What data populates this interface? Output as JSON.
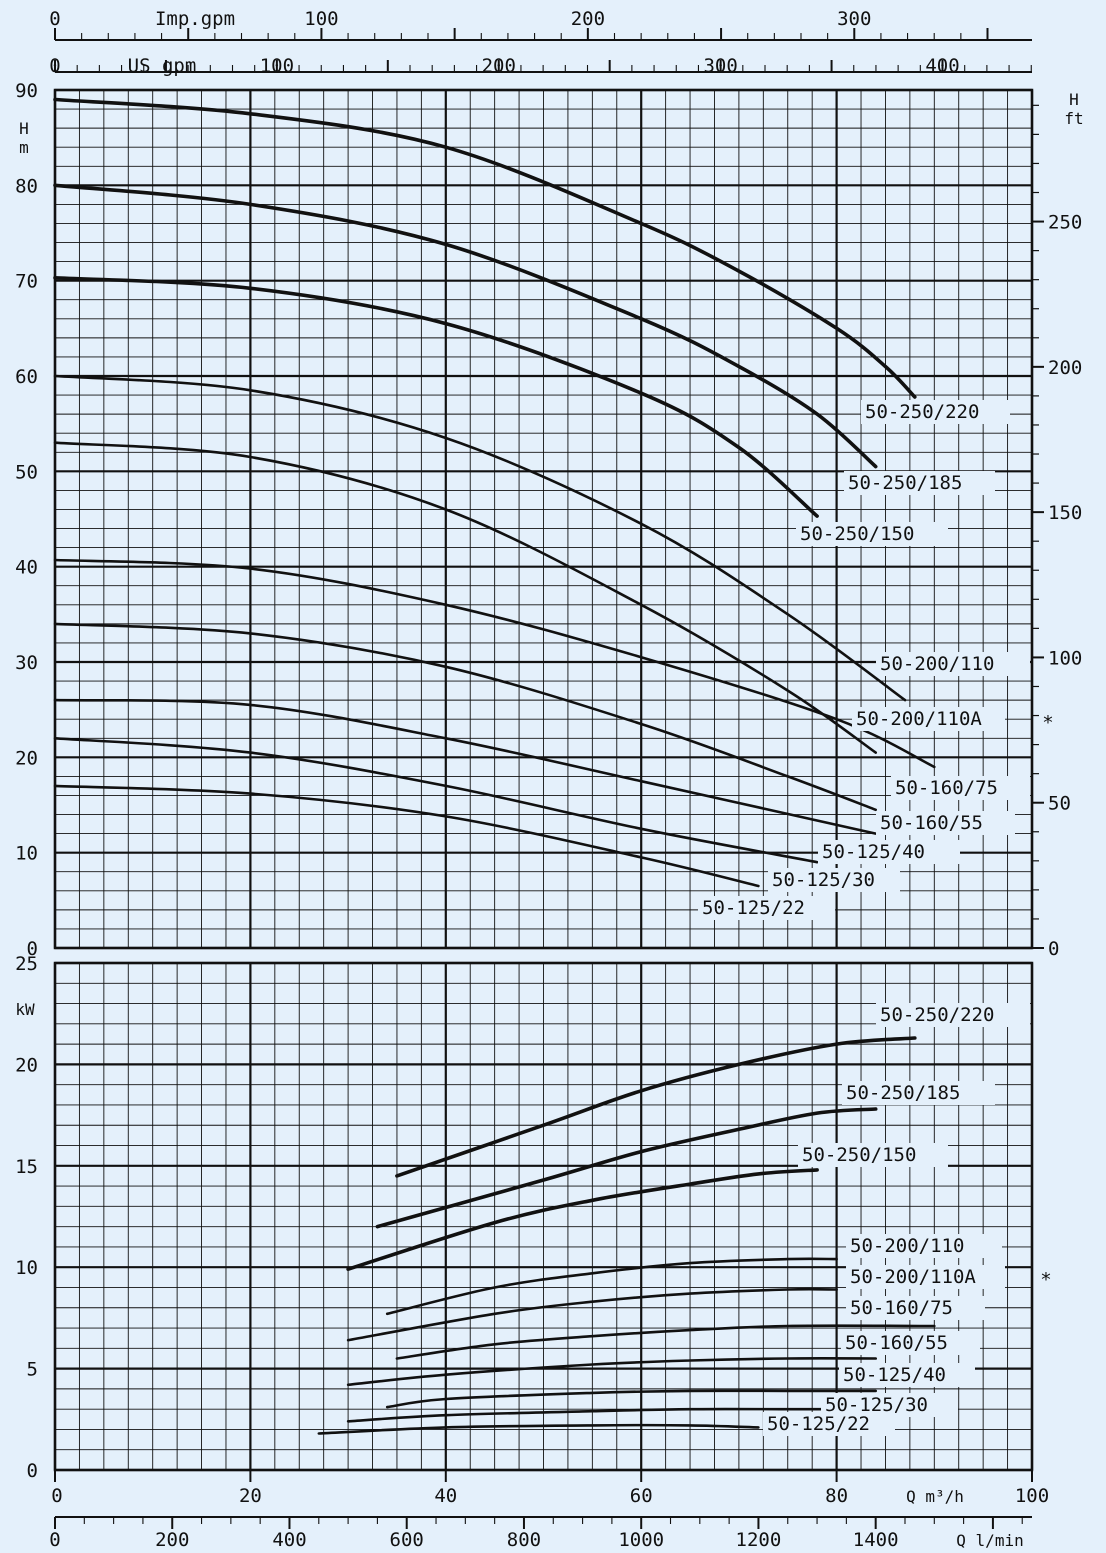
{
  "chart_data": [
    {
      "type": "line",
      "panel": "head",
      "xlabel": "Q m³/h",
      "ylabel_left": "H m",
      "ylabel_right": "H ft",
      "xlim": [
        0,
        100
      ],
      "ylim": [
        0,
        90
      ],
      "y_ticks": [
        0,
        10,
        20,
        30,
        40,
        50,
        60,
        70,
        80,
        90
      ],
      "right_axis_ticks": [
        0,
        50,
        100,
        150,
        200,
        250
      ],
      "top_axis_imp": {
        "label": "Imp.gpm",
        "ticks": [
          0,
          100,
          200,
          300
        ]
      },
      "top_axis_us": {
        "label": "US gpm",
        "ticks": [
          0,
          100,
          200,
          300,
          400
        ]
      },
      "grid": true,
      "marker_symbol": "*",
      "series": [
        {
          "name": "50-250/220",
          "points": [
            [
              0,
              89
            ],
            [
              20,
              87.5
            ],
            [
              40,
              84
            ],
            [
              60,
              76
            ],
            [
              70,
              71
            ],
            [
              80,
              65
            ],
            [
              85,
              61
            ],
            [
              88,
              57.8
            ]
          ]
        },
        {
          "name": "50-250/185",
          "points": [
            [
              0,
              80
            ],
            [
              20,
              78
            ],
            [
              40,
              73.8
            ],
            [
              60,
              66
            ],
            [
              70,
              61
            ],
            [
              78,
              56
            ],
            [
              84,
              50.5
            ]
          ]
        },
        {
          "name": "50-250/150",
          "points": [
            [
              0,
              70.3
            ],
            [
              20,
              69.2
            ],
            [
              40,
              65.5
            ],
            [
              60,
              58.2
            ],
            [
              70,
              52.5
            ],
            [
              78,
              45.3
            ]
          ]
        },
        {
          "name": "50-200/110",
          "points": [
            [
              0,
              60
            ],
            [
              20,
              58.5
            ],
            [
              40,
              53.5
            ],
            [
              60,
              44.5
            ],
            [
              75,
              35
            ],
            [
              87,
              26
            ]
          ]
        },
        {
          "name": "50-200/110A",
          "points": [
            [
              0,
              53
            ],
            [
              20,
              51.5
            ],
            [
              40,
              46
            ],
            [
              60,
              36
            ],
            [
              75,
              27
            ],
            [
              84,
              20.5
            ]
          ]
        },
        {
          "name": "50-160/75",
          "points": [
            [
              0,
              40.7
            ],
            [
              20,
              39.8
            ],
            [
              40,
              36
            ],
            [
              60,
              30.5
            ],
            [
              80,
              24
            ],
            [
              90,
              19
            ]
          ]
        },
        {
          "name": "50-160/55",
          "points": [
            [
              0,
              34
            ],
            [
              20,
              33
            ],
            [
              40,
              29.5
            ],
            [
              60,
              23.5
            ],
            [
              75,
              18
            ],
            [
              84,
              14.5
            ]
          ]
        },
        {
          "name": "50-125/40",
          "points": [
            [
              0,
              26
            ],
            [
              20,
              25.5
            ],
            [
              40,
              22
            ],
            [
              60,
              17.5
            ],
            [
              84,
              12
            ]
          ]
        },
        {
          "name": "50-125/30",
          "points": [
            [
              0,
              22
            ],
            [
              20,
              20.5
            ],
            [
              40,
              17
            ],
            [
              60,
              12.5
            ],
            [
              78,
              9
            ]
          ]
        },
        {
          "name": "50-125/22",
          "points": [
            [
              0,
              17
            ],
            [
              20,
              16.2
            ],
            [
              40,
              13.8
            ],
            [
              60,
              9.5
            ],
            [
              72,
              6.5
            ]
          ]
        }
      ]
    },
    {
      "type": "line",
      "panel": "power",
      "xlabel": "Q m³/h",
      "x2label": "Q l/min",
      "ylabel": "kW",
      "xlim": [
        0,
        100
      ],
      "ylim": [
        0,
        25
      ],
      "y_ticks": [
        0,
        5,
        10,
        15,
        20,
        25
      ],
      "x_ticks": [
        0,
        20,
        40,
        60,
        80,
        100
      ],
      "x2_ticks": [
        0,
        200,
        400,
        600,
        800,
        1000,
        1200,
        1400
      ],
      "grid": true,
      "marker_symbol": "*",
      "series": [
        {
          "name": "50-250/220",
          "points": [
            [
              35,
              14.5
            ],
            [
              50,
              17
            ],
            [
              60,
              18.7
            ],
            [
              70,
              20
            ],
            [
              80,
              21
            ],
            [
              88,
              21.3
            ]
          ]
        },
        {
          "name": "50-250/185",
          "points": [
            [
              33,
              12
            ],
            [
              50,
              14.3
            ],
            [
              60,
              15.7
            ],
            [
              70,
              16.8
            ],
            [
              78,
              17.6
            ],
            [
              84,
              17.8
            ]
          ]
        },
        {
          "name": "50-250/150",
          "points": [
            [
              30,
              9.9
            ],
            [
              45,
              12.2
            ],
            [
              55,
              13.3
            ],
            [
              65,
              14.1
            ],
            [
              72,
              14.6
            ],
            [
              78,
              14.8
            ]
          ]
        },
        {
          "name": "50-200/110",
          "points": [
            [
              34,
              7.7
            ],
            [
              45,
              9
            ],
            [
              55,
              9.7
            ],
            [
              65,
              10.2
            ],
            [
              75,
              10.4
            ],
            [
              80,
              10.4
            ]
          ]
        },
        {
          "name": "50-200/110A",
          "points": [
            [
              30,
              6.4
            ],
            [
              45,
              7.7
            ],
            [
              55,
              8.3
            ],
            [
              65,
              8.7
            ],
            [
              75,
              8.9
            ],
            [
              80,
              8.9
            ]
          ]
        },
        {
          "name": "50-160/75",
          "points": [
            [
              35,
              5.5
            ],
            [
              45,
              6.2
            ],
            [
              55,
              6.6
            ],
            [
              65,
              6.9
            ],
            [
              75,
              7.1
            ],
            [
              90,
              7.1
            ]
          ]
        },
        {
          "name": "50-160/55",
          "points": [
            [
              30,
              4.2
            ],
            [
              40,
              4.7
            ],
            [
              55,
              5.2
            ],
            [
              65,
              5.4
            ],
            [
              75,
              5.5
            ],
            [
              84,
              5.5
            ]
          ]
        },
        {
          "name": "50-125/40",
          "points": [
            [
              34,
              3.1
            ],
            [
              40,
              3.5
            ],
            [
              55,
              3.8
            ],
            [
              65,
              3.9
            ],
            [
              75,
              3.9
            ],
            [
              84,
              3.9
            ]
          ]
        },
        {
          "name": "50-125/30",
          "points": [
            [
              30,
              2.4
            ],
            [
              40,
              2.7
            ],
            [
              55,
              2.9
            ],
            [
              65,
              3
            ],
            [
              75,
              3
            ],
            [
              80,
              3
            ]
          ]
        },
        {
          "name": "50-125/22",
          "points": [
            [
              27,
              1.8
            ],
            [
              40,
              2.1
            ],
            [
              55,
              2.2
            ],
            [
              65,
              2.2
            ],
            [
              72,
              2.1
            ]
          ]
        }
      ]
    }
  ]
}
